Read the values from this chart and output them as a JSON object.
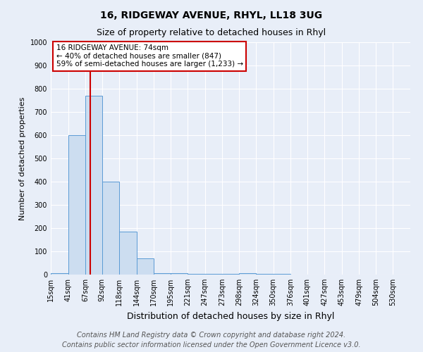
{
  "title": "16, RIDGEWAY AVENUE, RHYL, LL18 3UG",
  "subtitle": "Size of property relative to detached houses in Rhyl",
  "xlabel": "Distribution of detached houses by size in Rhyl",
  "ylabel": "Number of detached properties",
  "footer_line1": "Contains HM Land Registry data © Crown copyright and database right 2024.",
  "footer_line2": "Contains public sector information licensed under the Open Government Licence v3.0.",
  "annotation_line1": "16 RIDGEWAY AVENUE: 74sqm",
  "annotation_line2": "← 40% of detached houses are smaller (847)",
  "annotation_line3": "59% of semi-detached houses are larger (1,233) →",
  "property_size": 74,
  "bar_labels": [
    "15sqm",
    "41sqm",
    "67sqm",
    "92sqm",
    "118sqm",
    "144sqm",
    "170sqm",
    "195sqm",
    "221sqm",
    "247sqm",
    "273sqm",
    "298sqm",
    "324sqm",
    "350sqm",
    "376sqm",
    "401sqm",
    "427sqm",
    "453sqm",
    "479sqm",
    "504sqm",
    "530sqm"
  ],
  "bar_values": [
    5,
    600,
    770,
    400,
    185,
    70,
    5,
    5,
    3,
    3,
    3,
    5,
    3,
    2,
    1,
    1,
    1,
    0,
    0,
    0,
    0
  ],
  "bar_edges": [
    15,
    41,
    67,
    92,
    118,
    144,
    170,
    195,
    221,
    247,
    273,
    298,
    324,
    350,
    376,
    401,
    427,
    453,
    479,
    504,
    530,
    556
  ],
  "bar_color": "#ccddf0",
  "bar_edge_color": "#5b9bd5",
  "red_line_x": 74,
  "ylim": [
    0,
    1000
  ],
  "yticks": [
    0,
    100,
    200,
    300,
    400,
    500,
    600,
    700,
    800,
    900,
    1000
  ],
  "annotation_box_color": "#ffffff",
  "annotation_box_edge": "#cc0000",
  "title_fontsize": 10,
  "subtitle_fontsize": 9,
  "ylabel_fontsize": 8,
  "xlabel_fontsize": 9,
  "tick_fontsize": 7,
  "footer_fontsize": 7,
  "background_color": "#e8eef8",
  "grid_color": "#ffffff",
  "ann_fontsize": 7.5
}
